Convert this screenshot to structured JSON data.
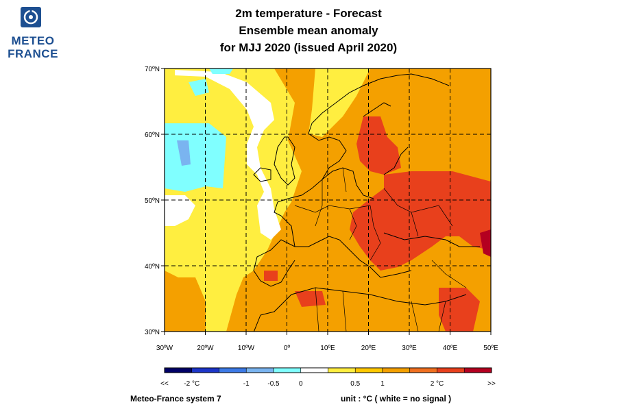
{
  "logo": {
    "line1": "METEO",
    "line2": "FRANCE"
  },
  "title": {
    "line1": "2m temperature   -   Forecast",
    "line2": "Ensemble mean anomaly",
    "line3": "for MJJ 2020   (issued April 2020)"
  },
  "axes": {
    "lat_labels": [
      "70ºN",
      "60ºN",
      "50ºN",
      "40ºN",
      "30ºN"
    ],
    "lon_labels": [
      "30ºW",
      "20ºW",
      "10ºW",
      "0º",
      "10ºE",
      "20ºE",
      "30ºE",
      "40ºE",
      "50ºE"
    ],
    "lat_range": [
      30,
      70
    ],
    "lon_range": [
      -30,
      50
    ]
  },
  "colorbar": {
    "colors": [
      "#000066",
      "#1c35c8",
      "#3c7ae6",
      "#7ab4f0",
      "#80ffff",
      "#ffffff",
      "#ffee40",
      "#ffc800",
      "#f4a000",
      "#f07020",
      "#e8401c",
      "#b40020"
    ],
    "labels": [
      "<<",
      "-2 °C",
      "-1",
      "-0.5",
      "0",
      "0.5",
      "1",
      "2 °C",
      ">>"
    ]
  },
  "footer": {
    "system": "Meteo-France system 7",
    "unit": "unit :  °C   ( white = no signal )"
  }
}
